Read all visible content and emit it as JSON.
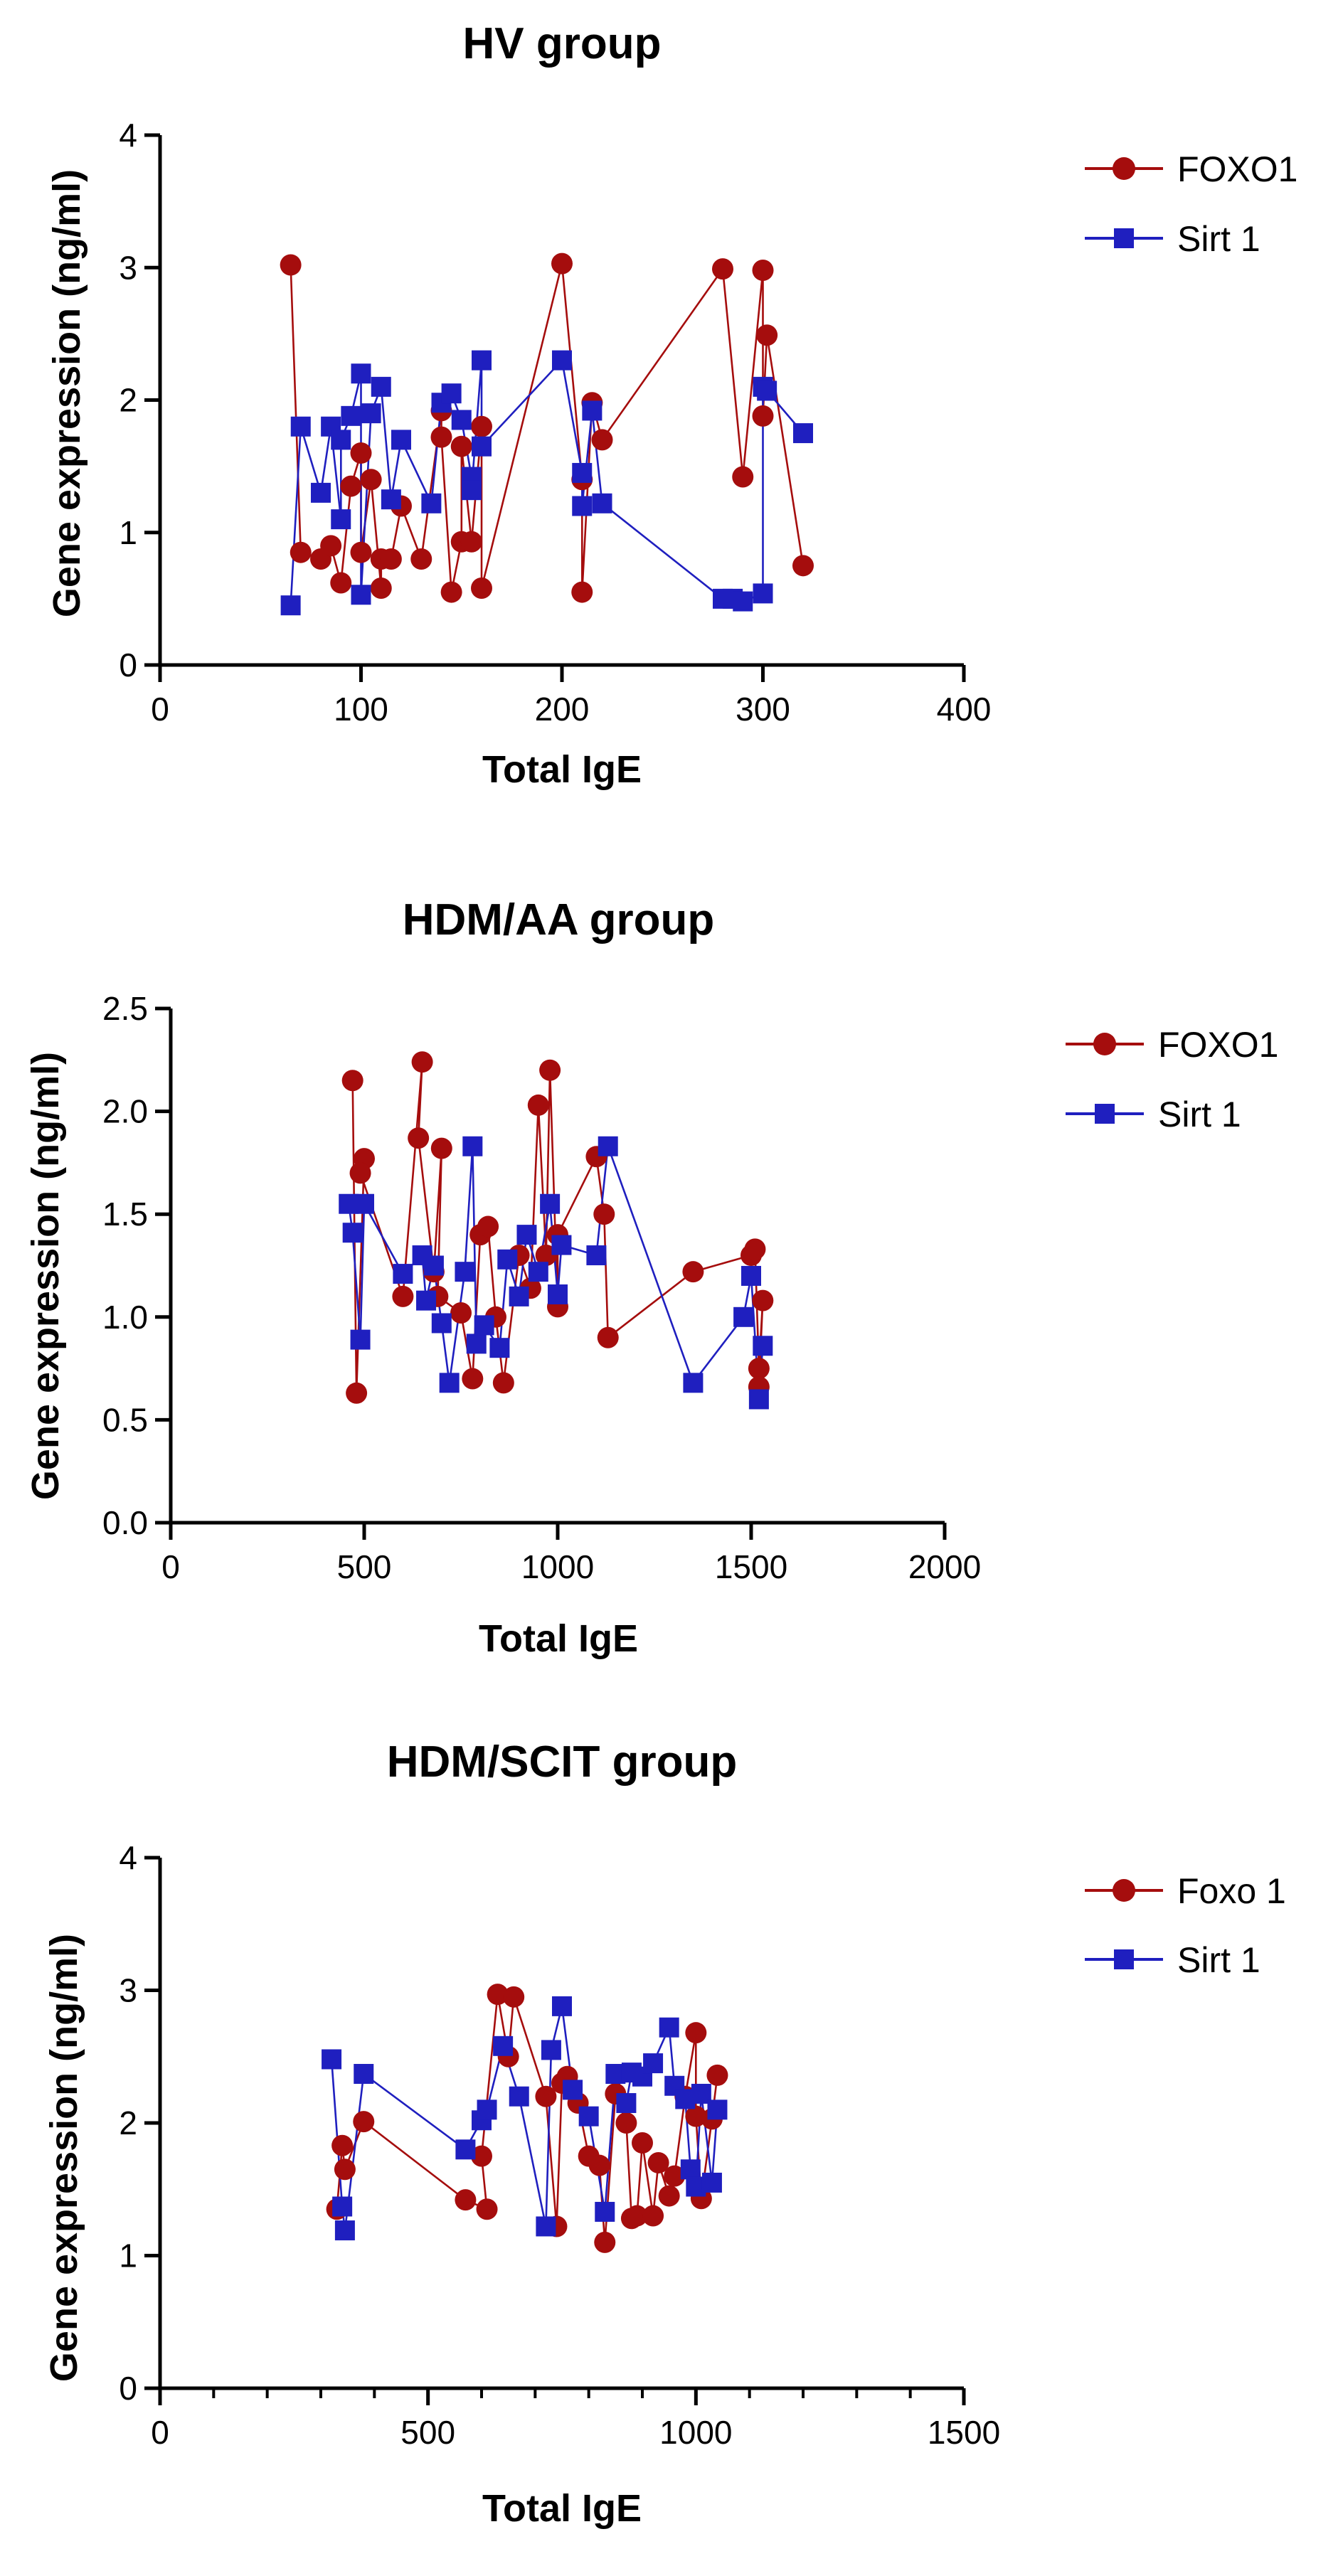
{
  "colors": {
    "foxo": "#a50d0d",
    "sirt": "#1f1fbf",
    "axis": "#000000"
  },
  "chart_data": [
    {
      "type": "line",
      "title": "HV group",
      "xlabel": "Total IgE",
      "ylabel": "Gene expression (ng/ml)",
      "xlim": [
        0,
        400
      ],
      "ylim": [
        0,
        4
      ],
      "xticks": [
        0,
        100,
        200,
        300,
        400
      ],
      "yticks": [
        0,
        1,
        2,
        3,
        4
      ],
      "xtick_labels": [
        "0",
        "100",
        "200",
        "300",
        "400"
      ],
      "ytick_labels": [
        "0",
        "1",
        "2",
        "3",
        "4"
      ],
      "legend": [
        "FOXO1",
        "Sirt 1"
      ],
      "series": [
        {
          "name": "FOXO1",
          "marker": "circle",
          "color": "#a50d0d",
          "x": [
            65,
            70,
            80,
            85,
            90,
            95,
            100,
            100,
            105,
            110,
            110,
            115,
            120,
            130,
            140,
            140,
            145,
            150,
            150,
            155,
            160,
            160,
            200,
            210,
            210,
            215,
            220,
            280,
            290,
            300,
            300,
            302,
            320
          ],
          "y": [
            3.02,
            0.85,
            0.8,
            0.9,
            0.62,
            1.35,
            1.6,
            0.85,
            1.4,
            0.58,
            0.8,
            0.8,
            1.2,
            0.8,
            1.92,
            1.72,
            0.55,
            0.93,
            1.65,
            0.93,
            1.8,
            0.58,
            3.03,
            1.4,
            0.55,
            1.98,
            1.7,
            2.99,
            1.42,
            2.98,
            1.88,
            2.49,
            0.75
          ]
        },
        {
          "name": "Sirt 1",
          "marker": "square",
          "color": "#1f1fbf",
          "x": [
            65,
            70,
            80,
            85,
            90,
            90,
            95,
            100,
            100,
            105,
            110,
            115,
            120,
            135,
            140,
            145,
            150,
            155,
            155,
            160,
            160,
            200,
            210,
            210,
            215,
            220,
            280,
            285,
            290,
            300,
            300,
            302,
            320
          ],
          "y": [
            0.45,
            1.8,
            1.3,
            1.8,
            1.1,
            1.7,
            1.88,
            2.2,
            0.53,
            1.9,
            2.1,
            1.25,
            1.7,
            1.22,
            1.98,
            2.05,
            1.85,
            1.42,
            1.32,
            2.3,
            1.65,
            2.3,
            1.45,
            1.2,
            1.92,
            1.22,
            0.5,
            0.5,
            0.48,
            0.54,
            2.1,
            2.07,
            1.75
          ]
        }
      ]
    },
    {
      "type": "line",
      "title": "HDM/AA group",
      "xlabel": "Total IgE",
      "ylabel": "Gene expression (ng/ml)",
      "xlim": [
        0,
        2000
      ],
      "ylim": [
        0,
        2.5
      ],
      "xticks": [
        0,
        500,
        1000,
        1500,
        2000
      ],
      "yticks": [
        0,
        0.5,
        1.0,
        1.5,
        2.0,
        2.5
      ],
      "xtick_labels": [
        "0",
        "500",
        "1000",
        "1500",
        "2000"
      ],
      "ytick_labels": [
        "0.0",
        "0.5",
        "1.0",
        "1.5",
        "2.0",
        "2.5"
      ],
      "legend": [
        "FOXO1",
        "Sirt 1"
      ],
      "series": [
        {
          "name": "FOXO1",
          "marker": "circle",
          "color": "#a50d0d",
          "x": [
            470,
            480,
            500,
            490,
            600,
            650,
            640,
            680,
            700,
            690,
            750,
            780,
            800,
            820,
            840,
            860,
            900,
            930,
            950,
            970,
            980,
            1000,
            1000,
            1100,
            1120,
            1130,
            1350,
            1500,
            1510,
            1520,
            1530,
            1520
          ],
          "y": [
            2.15,
            0.63,
            1.77,
            1.7,
            1.1,
            2.24,
            1.87,
            1.22,
            1.82,
            1.1,
            1.02,
            0.7,
            1.4,
            1.44,
            1.0,
            0.68,
            1.3,
            1.14,
            2.03,
            1.3,
            2.2,
            1.05,
            1.4,
            1.78,
            1.5,
            0.9,
            1.22,
            1.3,
            1.33,
            0.75,
            1.08,
            0.66
          ]
        },
        {
          "name": "Sirt 1",
          "marker": "square",
          "color": "#1f1fbf",
          "x": [
            460,
            470,
            490,
            500,
            600,
            650,
            660,
            680,
            700,
            720,
            760,
            780,
            790,
            810,
            850,
            870,
            900,
            920,
            950,
            980,
            1000,
            1010,
            1100,
            1130,
            1350,
            1480,
            1500,
            1520,
            1530
          ],
          "y": [
            1.55,
            1.41,
            0.89,
            1.55,
            1.21,
            1.3,
            1.08,
            1.25,
            0.97,
            0.68,
            1.22,
            1.83,
            0.87,
            0.96,
            0.85,
            1.28,
            1.1,
            1.4,
            1.22,
            1.55,
            1.11,
            1.35,
            1.3,
            1.83,
            0.68,
            1.0,
            1.2,
            0.6,
            0.86
          ]
        }
      ]
    },
    {
      "type": "line",
      "title": "HDM/SCIT  group",
      "xlabel": "Total IgE",
      "ylabel": "Gene expression (ng/ml)",
      "xlim": [
        0,
        1500
      ],
      "ylim": [
        0,
        4
      ],
      "xticks": [
        0,
        500,
        1000,
        1500
      ],
      "yticks": [
        0,
        1,
        2,
        3,
        4
      ],
      "xtick_labels": [
        "0",
        "500",
        "1000",
        "1500"
      ],
      "ytick_labels": [
        "0",
        "1",
        "2",
        "3",
        "4"
      ],
      "legend": [
        "Foxo 1",
        "Sirt 1"
      ],
      "series": [
        {
          "name": "Foxo 1",
          "marker": "circle",
          "color": "#a50d0d",
          "x": [
            330,
            340,
            345,
            380,
            570,
            610,
            600,
            630,
            650,
            660,
            720,
            740,
            750,
            760,
            780,
            800,
            820,
            830,
            850,
            870,
            880,
            890,
            900,
            920,
            930,
            950,
            960,
            980,
            1000,
            1000,
            1010,
            1030,
            1040
          ],
          "y": [
            1.35,
            1.83,
            1.65,
            2.01,
            1.42,
            1.35,
            1.75,
            2.97,
            2.5,
            2.95,
            2.2,
            1.22,
            2.3,
            2.35,
            2.15,
            1.75,
            1.68,
            1.1,
            2.22,
            2.0,
            1.28,
            1.3,
            1.85,
            1.3,
            1.7,
            1.45,
            1.6,
            2.2,
            2.68,
            2.05,
            1.43,
            2.03,
            2.36
          ]
        },
        {
          "name": "Sirt 1",
          "marker": "square",
          "color": "#1f1fbf",
          "x": [
            320,
            340,
            345,
            380,
            570,
            600,
            610,
            640,
            670,
            720,
            730,
            750,
            770,
            800,
            830,
            850,
            870,
            880,
            900,
            920,
            950,
            960,
            980,
            990,
            1000,
            1010,
            1030,
            1040
          ],
          "y": [
            2.48,
            1.37,
            1.19,
            2.37,
            1.8,
            2.02,
            2.1,
            2.58,
            2.2,
            1.22,
            2.55,
            2.88,
            2.25,
            2.05,
            1.33,
            2.37,
            2.15,
            2.38,
            2.35,
            2.45,
            2.72,
            2.28,
            2.18,
            1.65,
            1.52,
            2.22,
            1.55,
            2.1
          ]
        }
      ]
    }
  ]
}
